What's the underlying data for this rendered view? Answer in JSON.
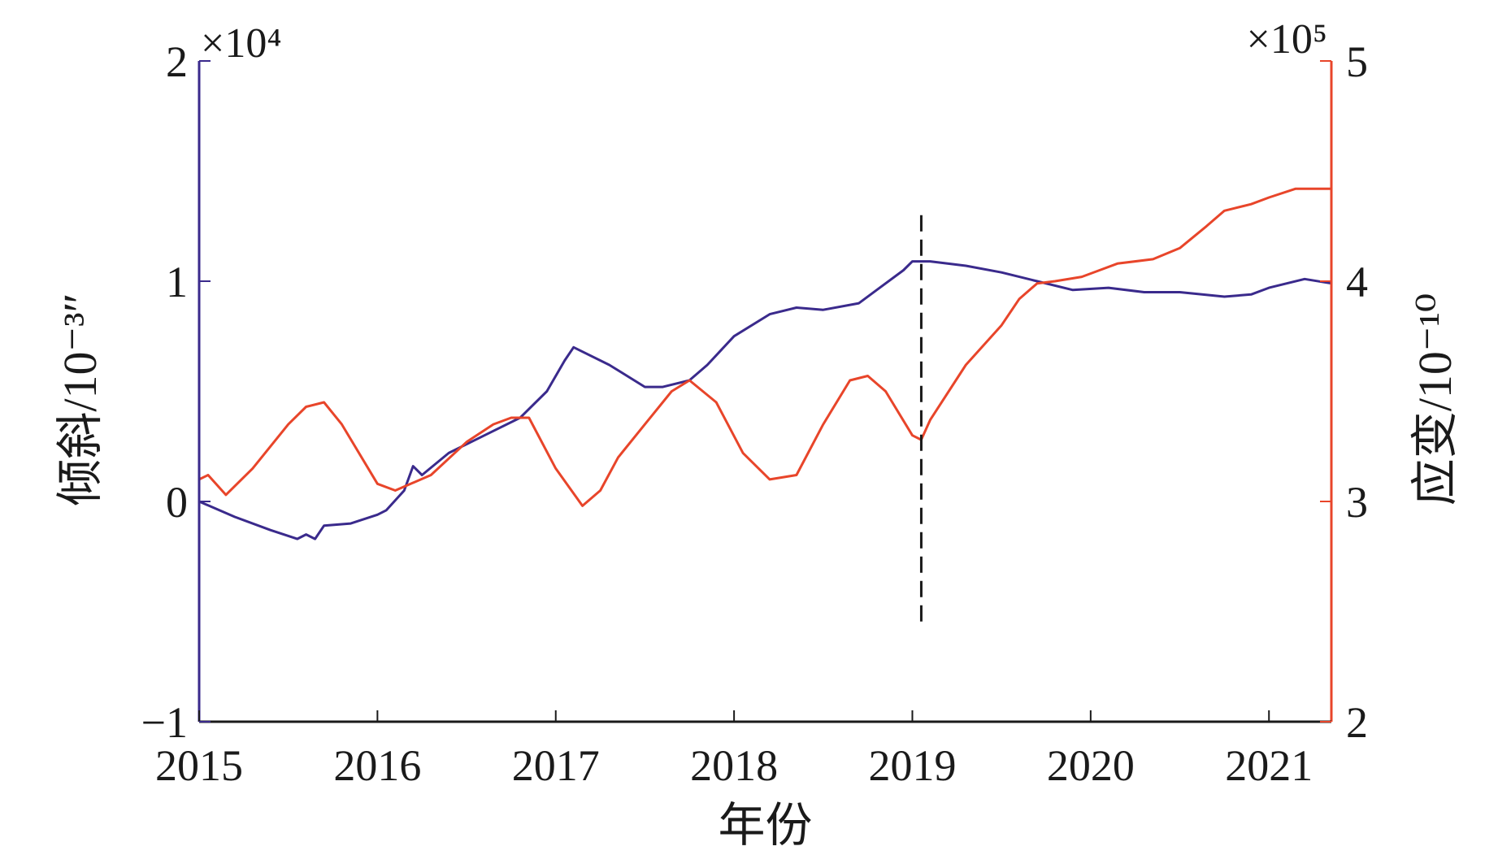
{
  "chart_data": {
    "type": "line",
    "xlabel": "年份",
    "ylabel_left": "倾斜/10⁻³″",
    "ylabel_right": "应变/10⁻¹⁰",
    "left_axis_exponent": "×10⁴",
    "right_axis_exponent": "×10⁵",
    "xlim": [
      2015.0,
      2021.35
    ],
    "ylim_left": [
      -1,
      2
    ],
    "ylim_right": [
      2,
      5
    ],
    "x_ticks": [
      2015,
      2016,
      2017,
      2018,
      2019,
      2020,
      2021
    ],
    "y_ticks_left": [
      -1,
      0,
      1,
      2
    ],
    "y_ticks_right": [
      2,
      3,
      4,
      5
    ],
    "y_tick_labels_left": [
      "−1",
      "0",
      "1",
      "2"
    ],
    "y_tick_labels_right": [
      "2",
      "3",
      "4",
      "5"
    ],
    "grid": false,
    "legend": "none",
    "vline": {
      "x": 2019.05,
      "y_left_range": [
        -0.55,
        1.3
      ],
      "style": "dashed",
      "color": "#1a1a1a"
    },
    "colors": {
      "left_axis": "#3a2a8c",
      "right_axis": "#e8452a"
    },
    "series": [
      {
        "axis": "left",
        "color": "#3a2a8c",
        "x": [
          2015.0,
          2015.2,
          2015.4,
          2015.55,
          2015.6,
          2015.65,
          2015.7,
          2015.85,
          2016.0,
          2016.05,
          2016.15,
          2016.2,
          2016.25,
          2016.4,
          2016.6,
          2016.8,
          2016.95,
          2017.05,
          2017.1,
          2017.3,
          2017.5,
          2017.6,
          2017.75,
          2017.85,
          2018.0,
          2018.2,
          2018.35,
          2018.5,
          2018.7,
          2018.8,
          2018.95,
          2019.0,
          2019.05,
          2019.1,
          2019.3,
          2019.5,
          2019.7,
          2019.9,
          2020.1,
          2020.3,
          2020.5,
          2020.75,
          2020.9,
          2021.0,
          2021.2,
          2021.35
        ],
        "values": [
          0.0,
          -0.07,
          -0.13,
          -0.17,
          -0.15,
          -0.17,
          -0.11,
          -0.1,
          -0.06,
          -0.04,
          0.05,
          0.16,
          0.12,
          0.22,
          0.3,
          0.38,
          0.5,
          0.64,
          0.7,
          0.62,
          0.52,
          0.52,
          0.55,
          0.62,
          0.75,
          0.85,
          0.88,
          0.87,
          0.9,
          0.96,
          1.05,
          1.09,
          1.09,
          1.09,
          1.07,
          1.04,
          1.0,
          0.96,
          0.97,
          0.95,
          0.95,
          0.93,
          0.94,
          0.97,
          1.01,
          0.99
        ]
      },
      {
        "axis": "right",
        "color": "#e8452a",
        "x": [
          2015.0,
          2015.05,
          2015.15,
          2015.3,
          2015.5,
          2015.6,
          2015.7,
          2015.8,
          2016.0,
          2016.1,
          2016.3,
          2016.5,
          2016.65,
          2016.75,
          2016.85,
          2017.0,
          2017.15,
          2017.25,
          2017.35,
          2017.5,
          2017.65,
          2017.75,
          2017.9,
          2018.05,
          2018.2,
          2018.35,
          2018.5,
          2018.65,
          2018.75,
          2018.85,
          2019.0,
          2019.05,
          2019.1,
          2019.3,
          2019.5,
          2019.6,
          2019.7,
          2019.8,
          2019.95,
          2020.05,
          2020.15,
          2020.35,
          2020.5,
          2020.65,
          2020.75,
          2020.9,
          2021.0,
          2021.15,
          2021.25,
          2021.35
        ],
        "values": [
          3.1,
          3.12,
          3.03,
          3.15,
          3.35,
          3.43,
          3.45,
          3.35,
          3.08,
          3.05,
          3.12,
          3.27,
          3.35,
          3.38,
          3.38,
          3.15,
          2.98,
          3.05,
          3.2,
          3.35,
          3.5,
          3.55,
          3.45,
          3.22,
          3.1,
          3.12,
          3.35,
          3.55,
          3.57,
          3.5,
          3.3,
          3.28,
          3.37,
          3.62,
          3.8,
          3.92,
          3.99,
          4.0,
          4.02,
          4.05,
          4.08,
          4.1,
          4.15,
          4.25,
          4.32,
          4.35,
          4.38,
          4.42,
          4.42,
          4.42
        ]
      }
    ]
  }
}
